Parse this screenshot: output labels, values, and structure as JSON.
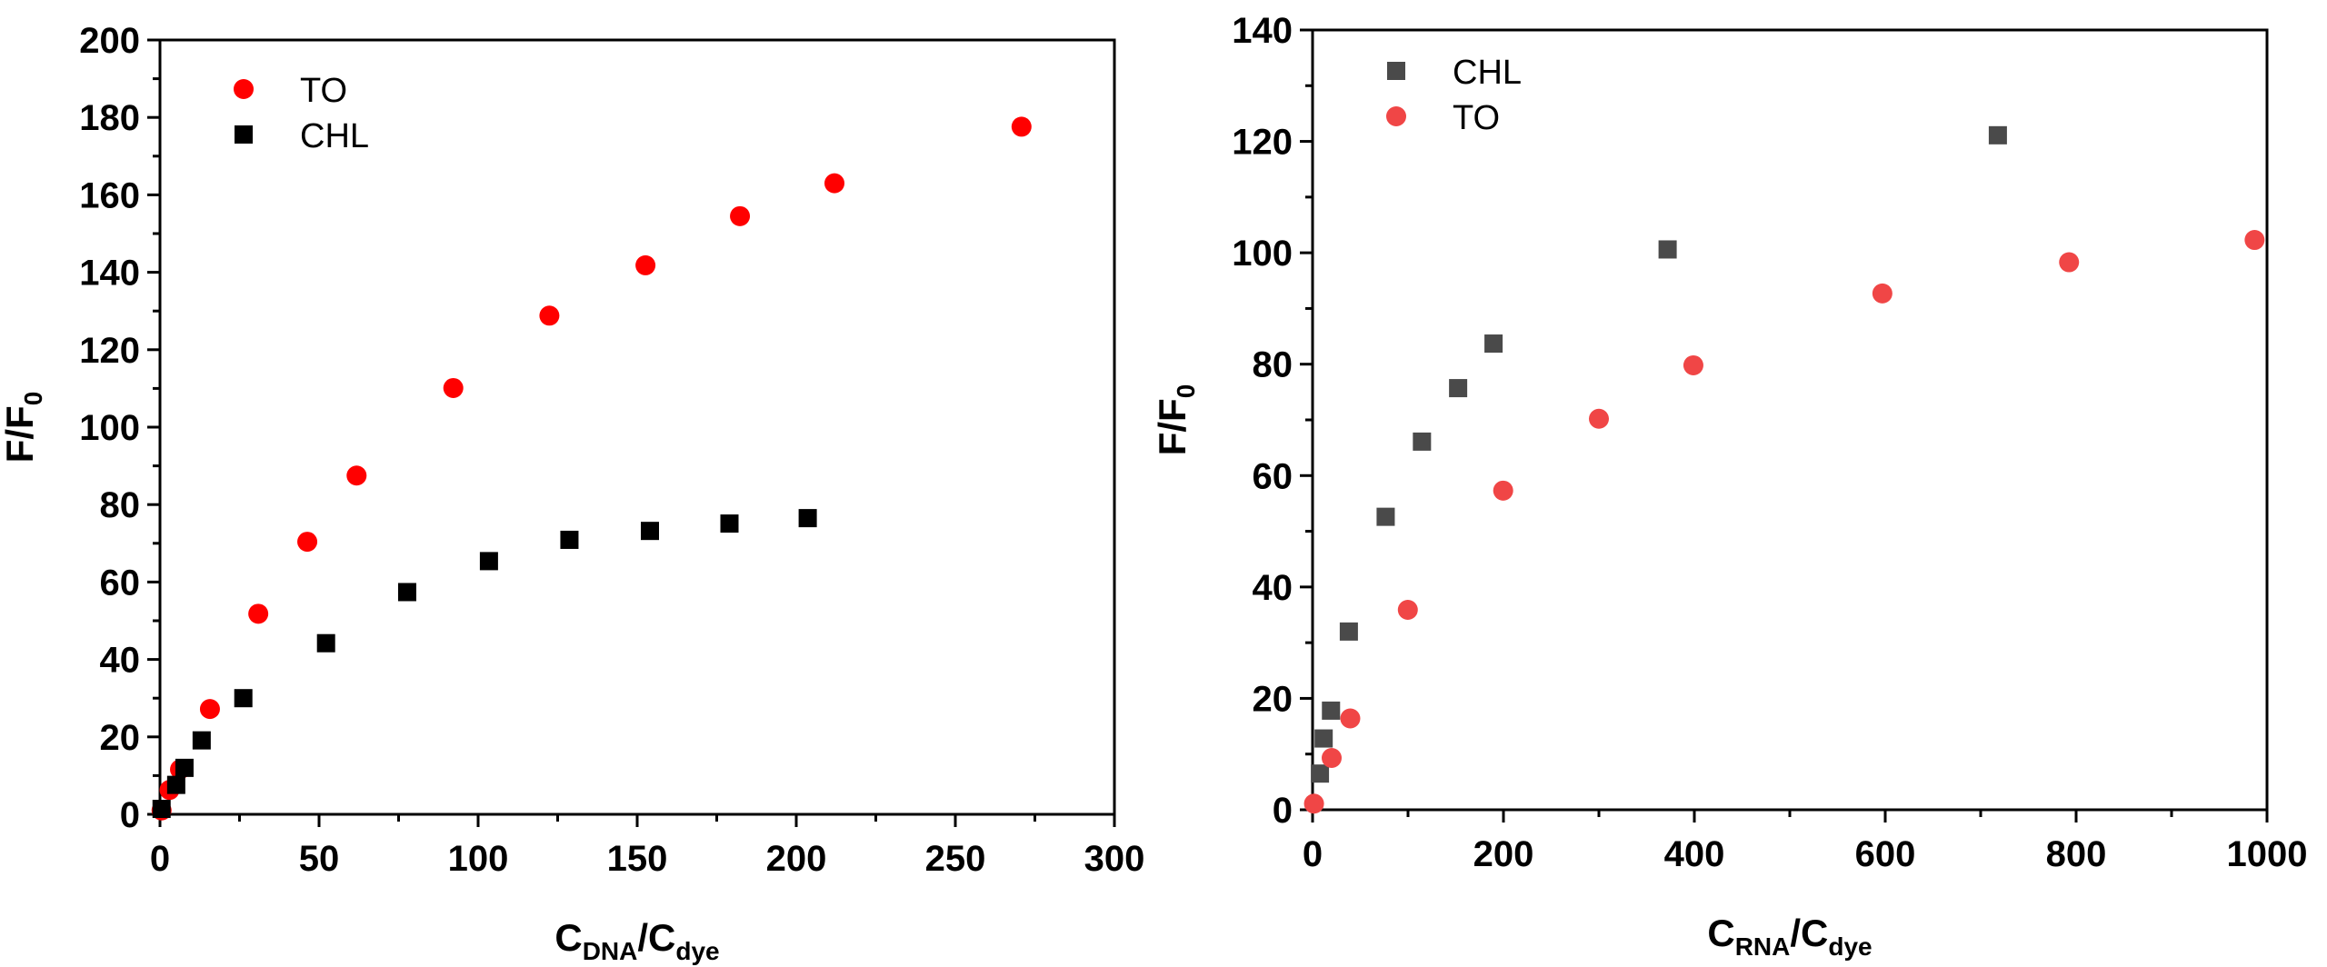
{
  "chart_data": [
    {
      "type": "scatter",
      "title": "",
      "xlabel": {
        "main1": "C",
        "sub1": "DNA",
        "sep": "/C",
        "sub2": "dye"
      },
      "ylabel": {
        "main": "F/F",
        "sub": "0"
      },
      "xlim": [
        0,
        300
      ],
      "ylim": [
        0,
        200
      ],
      "xticks": [
        0,
        50,
        100,
        150,
        200,
        250,
        300
      ],
      "yticks": [
        0,
        20,
        40,
        60,
        80,
        100,
        120,
        140,
        160,
        180,
        200
      ],
      "grid": false,
      "legend_position": "top-left",
      "series": [
        {
          "name": "TO",
          "marker": "circle",
          "color": "#ff0000",
          "x": [
            0.5,
            3,
            6.3,
            15.7,
            30.9,
            46.3,
            61.8,
            92.2,
            122.4,
            152.6,
            182.3,
            212,
            270.8
          ],
          "y": [
            1,
            6.3,
            11.6,
            27.2,
            51.8,
            70.4,
            87.5,
            110.1,
            128.8,
            141.8,
            154.5,
            163,
            177.6
          ]
        },
        {
          "name": "CHL",
          "marker": "square",
          "color": "#000000",
          "x": [
            0.5,
            5.1,
            7.7,
            13.1,
            26.2,
            52.2,
            77.7,
            103.4,
            128.7,
            154,
            179,
            203.6
          ],
          "y": [
            1.4,
            7.6,
            12,
            19.1,
            30,
            44.2,
            57.4,
            65.4,
            70.9,
            73.2,
            75.1,
            76.5
          ]
        }
      ]
    },
    {
      "type": "scatter",
      "title": "",
      "xlabel": {
        "main1": "C",
        "sub1": "RNA",
        "sep": "/C",
        "sub2": "dye"
      },
      "ylabel": {
        "main": "F/F",
        "sub": "0"
      },
      "xlim": [
        0,
        1000
      ],
      "ylim": [
        0,
        140
      ],
      "xticks": [
        0,
        200,
        400,
        600,
        800,
        1000
      ],
      "yticks": [
        0,
        20,
        40,
        60,
        80,
        100,
        120,
        140
      ],
      "grid": false,
      "legend_position": "top-left",
      "series": [
        {
          "name": "CHL",
          "marker": "square",
          "color": "#4a4a4a",
          "x": [
            7.7,
            11.6,
            19.3,
            38,
            76.6,
            114.6,
            152.5,
            189.6,
            372,
            718
          ],
          "y": [
            6.5,
            12.8,
            17.8,
            32,
            52.6,
            66.1,
            75.7,
            83.7,
            100.6,
            121.1
          ]
        },
        {
          "name": "TO",
          "marker": "circle",
          "color": "#f04646",
          "x": [
            1.5,
            20,
            39.5,
            99.8,
            199.7,
            300,
            399,
            597,
            792.6,
            987
          ],
          "y": [
            1.1,
            9.3,
            16.4,
            35.9,
            57.3,
            70.2,
            79.8,
            92.7,
            98.3,
            102.3
          ]
        }
      ]
    }
  ]
}
